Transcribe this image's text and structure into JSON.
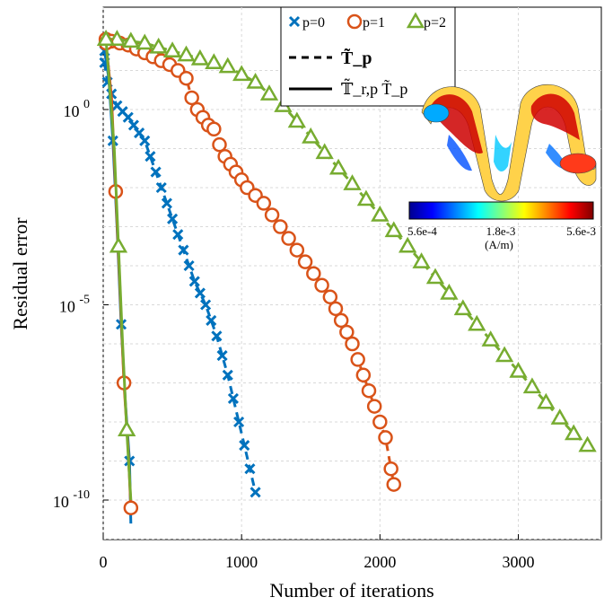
{
  "chart_data": {
    "type": "line",
    "xlabel": "Number of iterations",
    "ylabel": "Residual error",
    "xlim": [
      0,
      3600
    ],
    "ylim_log10": [
      -11,
      1.8
    ],
    "y_scale": "log",
    "grid": true,
    "xticks": [
      0,
      1000,
      2000,
      3000
    ],
    "xtick_labels": [
      "0",
      "1000",
      "2000",
      "3000"
    ],
    "yticks_log10": [
      0,
      -5,
      -10
    ],
    "ytick_labels": [
      {
        "base": "10",
        "exp": "0"
      },
      {
        "base": "10",
        "exp": "-5"
      },
      {
        "base": "10",
        "exp": "-10"
      }
    ],
    "legend": {
      "placement": "top-center",
      "markers": [
        {
          "label": "p=0",
          "color": "#0072BD",
          "marker": "x"
        },
        {
          "label": "p=1",
          "color": "#D95319",
          "marker": "circle"
        },
        {
          "label": "p=2",
          "color": "#77AC30",
          "marker": "triangle"
        }
      ],
      "lines": [
        {
          "style": "dashed",
          "label": "T̃_p"
        },
        {
          "style": "solid",
          "label": "𝕋̃_r,p T̃_p"
        }
      ]
    },
    "series": [
      {
        "name": "p=0",
        "style": "dashed",
        "color": "#0072BD",
        "marker": "x",
        "x": [
          10,
          30,
          60,
          100,
          140,
          180,
          220,
          260,
          300,
          340,
          380,
          420,
          460,
          500,
          540,
          580,
          620,
          660,
          700,
          740,
          780,
          820,
          860,
          900,
          940,
          980,
          1020,
          1060,
          1100
        ],
        "log10_y": [
          1.2,
          0.7,
          0.4,
          0.1,
          -0.05,
          -0.2,
          -0.4,
          -0.6,
          -0.8,
          -1.2,
          -1.6,
          -2.0,
          -2.4,
          -2.8,
          -3.2,
          -3.6,
          -4.0,
          -4.4,
          -4.7,
          -5.0,
          -5.4,
          -5.8,
          -6.3,
          -6.8,
          -7.4,
          -8.0,
          -8.6,
          -9.2,
          -9.8
        ]
      },
      {
        "name": "p=1",
        "style": "dashed",
        "color": "#D95319",
        "marker": "circle",
        "x": [
          20,
          60,
          120,
          180,
          240,
          300,
          360,
          420,
          480,
          540,
          600,
          640,
          680,
          720,
          760,
          800,
          840,
          880,
          920,
          960,
          1000,
          1040,
          1100,
          1160,
          1220,
          1280,
          1340,
          1400,
          1460,
          1520,
          1580,
          1640,
          1680,
          1720,
          1760,
          1800,
          1840,
          1880,
          1920,
          1960,
          2000,
          2040,
          2080,
          2100
        ],
        "log10_y": [
          1.8,
          1.75,
          1.7,
          1.65,
          1.55,
          1.45,
          1.35,
          1.25,
          1.15,
          1.0,
          0.8,
          0.3,
          0.0,
          -0.2,
          -0.4,
          -0.5,
          -0.9,
          -1.2,
          -1.4,
          -1.6,
          -1.8,
          -2.0,
          -2.2,
          -2.4,
          -2.7,
          -3.0,
          -3.3,
          -3.6,
          -3.9,
          -4.2,
          -4.5,
          -4.8,
          -5.1,
          -5.4,
          -5.7,
          -6.0,
          -6.4,
          -6.8,
          -7.2,
          -7.6,
          -8.0,
          -8.4,
          -9.2,
          -9.6
        ]
      },
      {
        "name": "p=2",
        "style": "dashed",
        "color": "#77AC30",
        "marker": "triangle",
        "x": [
          20,
          100,
          200,
          300,
          400,
          500,
          600,
          700,
          800,
          900,
          1000,
          1100,
          1200,
          1300,
          1400,
          1500,
          1600,
          1700,
          1800,
          1900,
          2000,
          2100,
          2200,
          2300,
          2400,
          2500,
          2600,
          2700,
          2800,
          2900,
          3000,
          3100,
          3200,
          3300,
          3400,
          3500
        ],
        "log10_y": [
          1.8,
          1.8,
          1.75,
          1.7,
          1.6,
          1.5,
          1.4,
          1.3,
          1.2,
          1.1,
          0.9,
          0.7,
          0.4,
          0.1,
          -0.3,
          -0.7,
          -1.1,
          -1.5,
          -1.9,
          -2.3,
          -2.7,
          -3.1,
          -3.5,
          -3.9,
          -4.3,
          -4.7,
          -5.1,
          -5.5,
          -5.9,
          -6.3,
          -6.7,
          -7.1,
          -7.5,
          -7.9,
          -8.3,
          -8.6
        ]
      },
      {
        "name": "p=0",
        "style": "solid",
        "color": "#0072BD",
        "marker": "x",
        "x": [
          10,
          40,
          70,
          100,
          130,
          160,
          190,
          200
        ],
        "log10_y": [
          1.5,
          0.8,
          -0.8,
          -3.0,
          -5.5,
          -7.5,
          -9.0,
          -10.6
        ]
      },
      {
        "name": "p=1",
        "style": "solid",
        "color": "#D95319",
        "marker": "circle",
        "x": [
          20,
          60,
          90,
          120,
          150,
          180,
          200
        ],
        "log10_y": [
          1.7,
          0.3,
          -2.1,
          -4.5,
          -7.0,
          -8.7,
          -10.2
        ]
      },
      {
        "name": "p=2",
        "style": "solid",
        "color": "#77AC30",
        "marker": "triangle",
        "x": [
          20,
          80,
          110,
          140,
          170,
          200
        ],
        "log10_y": [
          1.8,
          -1.0,
          -3.5,
          -6.0,
          -8.2,
          -10.0
        ]
      }
    ]
  },
  "inset": {
    "colorbar_min": "5.6e-4",
    "colorbar_mid": "1.8e-3",
    "colorbar_max": "5.6e-3",
    "colorbar_unit": "(A/m)",
    "colormap": [
      "#00008f",
      "#0000ff",
      "#0080ff",
      "#00ffff",
      "#80ff80",
      "#ffff00",
      "#ff8000",
      "#ff0000",
      "#800000"
    ]
  }
}
